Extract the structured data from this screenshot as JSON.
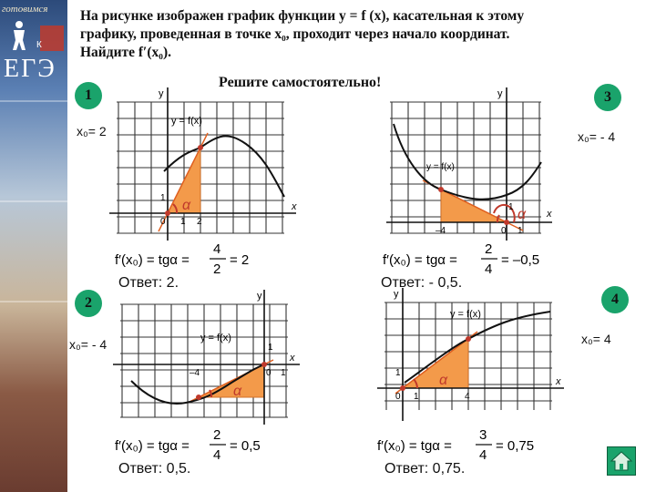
{
  "sidebar": {
    "top_text": "готовимся",
    "letter_k": "К",
    "ege": "ЕГЭ"
  },
  "task": {
    "line1": "На рисунке изображен график функции y = f (x), касательная к этому",
    "line2": "графику, проведенная в точке x₀, проходит через начало координат.",
    "line3": "Найдите f′(x₀)."
  },
  "subhead": "Решите самостоятельно!",
  "problems": [
    {
      "num": "1",
      "x0_label": "x₀= 2",
      "formula_num": "4",
      "formula_den": "2",
      "formula_result": "= 2",
      "answer": "Ответ: 2."
    },
    {
      "num": "2",
      "x0_label": "x₀= - 4",
      "formula_num": "2",
      "formula_den": "4",
      "formula_result": "= 0,5",
      "answer": "Ответ: 0,5."
    },
    {
      "num": "3",
      "x0_label": "x₀= - 4",
      "formula_num": "2",
      "formula_den": "4",
      "formula_result": "= –0,5",
      "answer": "Ответ: - 0,5."
    },
    {
      "num": "4",
      "x0_label": "x₀= 4",
      "formula_num": "3",
      "formula_den": "4",
      "formula_result": "= 0,75",
      "answer": "Ответ: 0,75."
    }
  ],
  "formula_lhs": "f′(x₀) = tgα =",
  "graph_labels": {
    "y": "y",
    "x": "x",
    "fx": "y = f(x)",
    "alpha": "α",
    "zero": "0",
    "one": "1",
    "two": "2",
    "four": "4",
    "minus_four": "–4"
  },
  "colors": {
    "circle": "#1aa36b",
    "triangle": "#f39a4a",
    "curve": "#111111"
  }
}
